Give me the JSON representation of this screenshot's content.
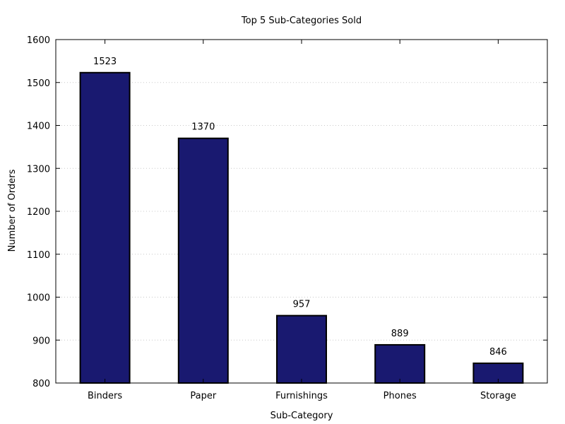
{
  "chart_data": {
    "type": "bar",
    "title": "Top 5 Sub-Categories Sold",
    "xlabel": "Sub-Category",
    "ylabel": "Number of Orders",
    "categories": [
      "Binders",
      "Paper",
      "Furnishings",
      "Phones",
      "Storage"
    ],
    "values": [
      1523,
      1370,
      957,
      889,
      846
    ],
    "data_labels": [
      "1523",
      "1370",
      "957",
      "889",
      "846"
    ],
    "ylim": [
      800,
      1600
    ],
    "yticks": [
      800,
      900,
      1000,
      1100,
      1200,
      1300,
      1400,
      1500,
      1600
    ],
    "grid": true,
    "bar_color": "#191970"
  }
}
